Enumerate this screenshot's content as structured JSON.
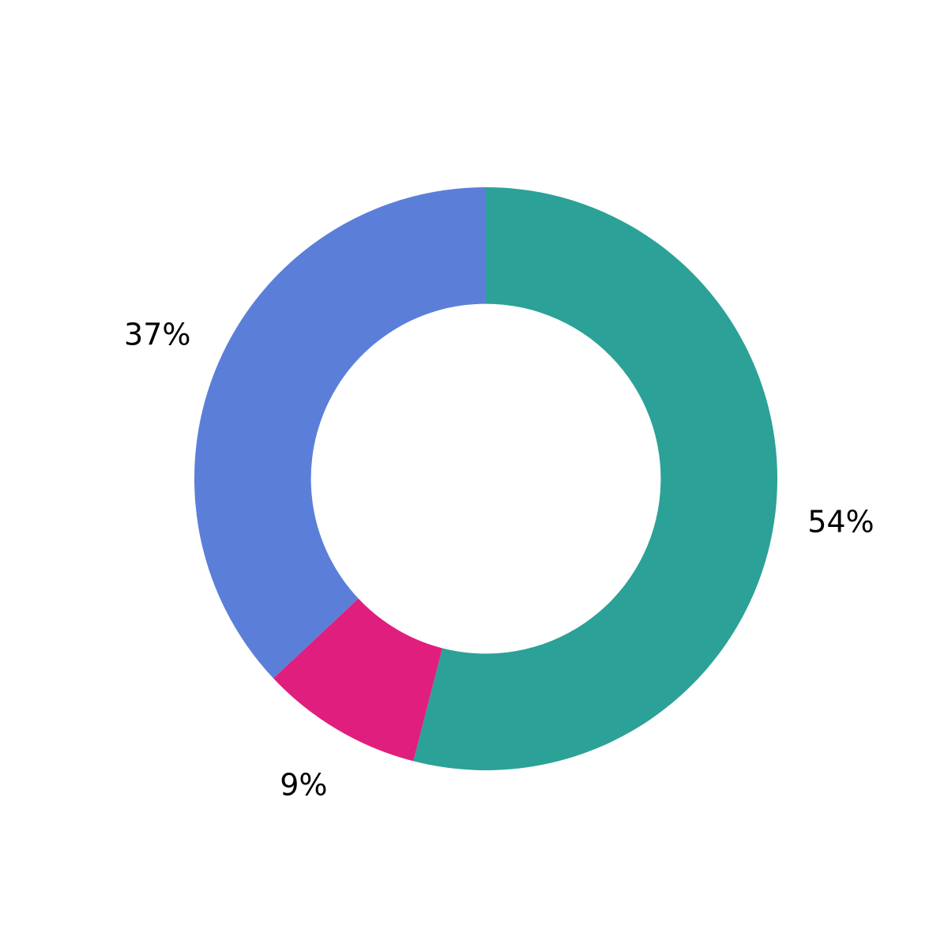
{
  "chart_data": {
    "type": "pie",
    "values": [
      54,
      9,
      37
    ],
    "value_labels": [
      "54%",
      "9%",
      "37%"
    ],
    "colors": [
      "#2ca197",
      "#e01e7e",
      "#5b7fd9"
    ],
    "hole": 0.6,
    "start": "top",
    "direction": "clockwise"
  }
}
